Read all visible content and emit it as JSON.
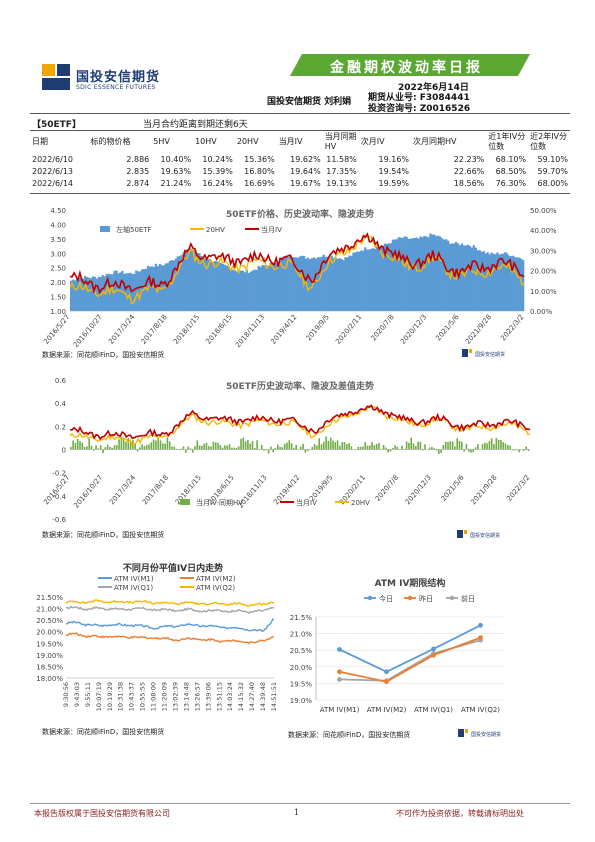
{
  "header": {
    "company_cn": "国投安信期货",
    "company_en": "SDIC ESSENCE FUTURES",
    "report_title": "金融期权波动率日报",
    "date": "2022年6月14日",
    "authors": "国投安信期货 刘利娟",
    "license1": "期货从业号: F3084441",
    "license2": "投资咨询号: Z0016526"
  },
  "summary": {
    "tag": "【50ETF】",
    "remaining": "当月合约距离到期还剩6天",
    "columns": [
      "日期",
      "标的物价格",
      "5HV",
      "10HV",
      "20HV",
      "当月IV",
      "当月同期HV",
      "次月IV",
      "次月同期HV",
      "近1年IV分位数",
      "近2年IV分位数"
    ],
    "rows": [
      [
        "2022/6/10",
        "2.886",
        "10.40%",
        "10.24%",
        "15.36%",
        "19.62%",
        "11.58%",
        "19.16%",
        "22.23%",
        "68.10%",
        "59.10%"
      ],
      [
        "2022/6/13",
        "2.835",
        "19.63%",
        "15.39%",
        "16.80%",
        "19.64%",
        "17.35%",
        "19.54%",
        "22.66%",
        "68.50%",
        "59.70%"
      ],
      [
        "2022/6/14",
        "2.874",
        "21.24%",
        "16.24%",
        "16.69%",
        "19.67%",
        "19.13%",
        "19.59%",
        "18.56%",
        "76.30%",
        "68.00%"
      ]
    ]
  },
  "chart1": {
    "title": "50ETF价格、历史波动率、隐波走势",
    "legend": [
      "左轴50ETF",
      "20HV",
      "当月IV"
    ],
    "yleft_ticks": [
      "4.50",
      "4.00",
      "3.50",
      "3.00",
      "2.50",
      "2.00",
      "1.50",
      "1.00"
    ],
    "yright_ticks": [
      "50.00%",
      "40.00%",
      "30.00%",
      "20.00%",
      "10.00%",
      "0.00%"
    ],
    "xticks": [
      "2016/5/27",
      "2016/10/27",
      "2017/3/24",
      "2017/8/18",
      "2018/1/15",
      "2018/6/15",
      "2018/11/13",
      "2019/4/12",
      "2019/9/5",
      "2020/2/11",
      "2020/7/8",
      "2020/12/3",
      "2021/5/6",
      "2021/9/28",
      "2022/3/2"
    ],
    "source": "数据来源：同花顺iFinD，国投安信期货"
  },
  "chart2": {
    "title": "50ETF历史波动率、隐波及差值走势",
    "legend": [
      "当月IV-同期HV",
      "当月IV",
      "20HV"
    ],
    "yticks": [
      "0.6",
      "0.4",
      "0.2",
      "0",
      "-0.2",
      "-0.4",
      "-0.6"
    ],
    "xticks": [
      "2016/5/27",
      "2016/10/27",
      "2017/3/24",
      "2017/8/18",
      "2018/1/15",
      "2018/6/15",
      "2018/11/13",
      "2019/4/12",
      "2019/9/5",
      "2020/2/11",
      "2020/7/8",
      "2020/12/3",
      "2021/5/6",
      "2021/9/28",
      "2022/3/2"
    ],
    "source": "数据来源：同花顺iFinD，国投安信期货"
  },
  "chart3": {
    "title": "不同月份平值IV日内走势",
    "legend": [
      "ATM IV(M1)",
      "ATM IV(M2)",
      "ATM IV(Q1)",
      "ATM IV(Q2)"
    ],
    "yticks": [
      "21.50%",
      "21.00%",
      "20.50%",
      "20.00%",
      "19.50%",
      "19.00%",
      "18.50%",
      "18.00%"
    ],
    "xticks": [
      "9:30:56",
      "9:43:03",
      "9:55:11",
      "10:07:19",
      "10:19:29",
      "10:31:38",
      "10:43:37",
      "10:55:55",
      "11:08:00",
      "11:20:09",
      "13:02:39",
      "13:14:48",
      "13:26:57",
      "13:39:06",
      "13:51:15",
      "14:03:24",
      "14:15:32",
      "14:27:40",
      "14:39:48",
      "14:51:51"
    ],
    "source": "数据来源：同花顺iFinD，国投安信期货"
  },
  "chart4": {
    "title": "ATM IV期限结构",
    "legend": [
      "今日",
      "昨日",
      "前日"
    ],
    "yticks": [
      "21.5%",
      "21.0%",
      "20.5%",
      "20.0%",
      "19.5%",
      "19.0%"
    ],
    "categories": [
      "ATM IV(M1)",
      "ATM IV(M2)",
      "ATM IV(Q1)",
      "ATM IV(Q2)"
    ],
    "source": "数据来源：同花顺iFinD，国投安信期货"
  },
  "chart_data": [
    {
      "type": "area",
      "title": "50ETF价格、历史波动率、隐波走势",
      "x": [
        "2016/5/27",
        "2016/10/27",
        "2017/3/24",
        "2017/8/18",
        "2018/1/15",
        "2018/6/15",
        "2018/11/13",
        "2019/4/12",
        "2019/9/5",
        "2020/2/11",
        "2020/7/8",
        "2020/12/3",
        "2021/5/6",
        "2021/9/28",
        "2022/3/2",
        "2022/6/14"
      ],
      "ylim_left": [
        1.0,
        4.5
      ],
      "ylim_right": [
        0,
        0.5
      ],
      "series": [
        {
          "name": "左轴50ETF",
          "axis": "left",
          "values": [
            2.05,
            2.25,
            2.35,
            2.6,
            3.15,
            2.55,
            2.35,
            2.85,
            2.9,
            2.85,
            3.2,
            3.5,
            3.6,
            3.3,
            3.0,
            2.87
          ]
        },
        {
          "name": "20HV",
          "axis": "right",
          "values": [
            0.11,
            0.1,
            0.08,
            0.1,
            0.28,
            0.22,
            0.23,
            0.24,
            0.13,
            0.3,
            0.35,
            0.22,
            0.25,
            0.17,
            0.22,
            0.167
          ]
        },
        {
          "name": "当月IV",
          "axis": "right",
          "values": [
            0.16,
            0.13,
            0.12,
            0.13,
            0.3,
            0.25,
            0.26,
            0.26,
            0.17,
            0.33,
            0.36,
            0.24,
            0.26,
            0.19,
            0.24,
            0.197
          ]
        }
      ]
    },
    {
      "type": "line",
      "title": "50ETF历史波动率、隐波及差值走势",
      "x": [
        "2016/5/27",
        "2016/10/27",
        "2017/3/24",
        "2017/8/18",
        "2018/1/15",
        "2018/6/15",
        "2018/11/13",
        "2019/4/12",
        "2019/9/5",
        "2020/2/11",
        "2020/7/8",
        "2020/12/3",
        "2021/5/6",
        "2021/9/28",
        "2022/3/2",
        "2022/6/14"
      ],
      "ylim": [
        -0.6,
        0.6
      ],
      "series": [
        {
          "name": "当月IV-同期HV",
          "values": [
            0.03,
            0.04,
            0.04,
            0.05,
            0.02,
            0.05,
            0.04,
            0.03,
            0.05,
            0.06,
            0.02,
            0.03,
            0.02,
            0.03,
            0.04,
            0.005
          ]
        },
        {
          "name": "当月IV",
          "values": [
            0.16,
            0.13,
            0.12,
            0.13,
            0.3,
            0.25,
            0.26,
            0.26,
            0.17,
            0.33,
            0.36,
            0.24,
            0.26,
            0.19,
            0.24,
            0.197
          ]
        },
        {
          "name": "20HV",
          "values": [
            0.11,
            0.1,
            0.08,
            0.1,
            0.28,
            0.22,
            0.23,
            0.24,
            0.13,
            0.3,
            0.35,
            0.22,
            0.25,
            0.17,
            0.22,
            0.167
          ]
        }
      ]
    },
    {
      "type": "line",
      "title": "不同月份平值IV日内走势",
      "ylim": [
        0.18,
        0.215
      ],
      "series": [
        {
          "name": "ATM IV(M1)",
          "values": [
            0.2035,
            0.204,
            0.203,
            0.2025,
            0.2032,
            0.2028,
            0.203,
            0.2022,
            0.2018,
            0.202,
            0.2025,
            0.203,
            0.2028,
            0.2024,
            0.202,
            0.2018,
            0.2015,
            0.201,
            0.2,
            0.206
          ]
        },
        {
          "name": "ATM IV(M2)",
          "values": [
            0.1985,
            0.199,
            0.1982,
            0.1978,
            0.198,
            0.1975,
            0.1978,
            0.1972,
            0.1975,
            0.197,
            0.1965,
            0.197,
            0.1968,
            0.1965,
            0.196,
            0.1962,
            0.1958,
            0.1955,
            0.1958,
            0.1985
          ]
        },
        {
          "name": "ATM IV(Q1)",
          "values": [
            0.21,
            0.2105,
            0.2098,
            0.2102,
            0.21,
            0.2095,
            0.21,
            0.2098,
            0.2096,
            0.2094,
            0.2092,
            0.2095,
            0.2093,
            0.209,
            0.2092,
            0.2088,
            0.209,
            0.2086,
            0.2088,
            0.211
          ]
        },
        {
          "name": "ATM IV(Q2)",
          "values": [
            0.2125,
            0.213,
            0.2128,
            0.2132,
            0.213,
            0.2128,
            0.213,
            0.2128,
            0.2126,
            0.2124,
            0.2122,
            0.2125,
            0.2123,
            0.212,
            0.2122,
            0.2118,
            0.212,
            0.2116,
            0.2118,
            0.213
          ]
        }
      ]
    },
    {
      "type": "line",
      "title": "ATM IV期限结构",
      "categories": [
        "ATM IV(M1)",
        "ATM IV(M2)",
        "ATM IV(Q1)",
        "ATM IV(Q2)"
      ],
      "ylim": [
        0.19,
        0.215
      ],
      "series": [
        {
          "name": "今日",
          "values": [
            0.2052,
            0.1985,
            0.2054,
            0.2125
          ]
        },
        {
          "name": "昨日",
          "values": [
            0.1985,
            0.1955,
            0.2035,
            0.2088
          ]
        },
        {
          "name": "前日",
          "values": [
            0.1962,
            0.1958,
            0.204,
            0.208
          ]
        }
      ]
    }
  ],
  "footer": {
    "left": "本报告版权属于国投安信期货有限公司",
    "page": "1",
    "right": "不可作为投资依据，转载请标明出处"
  },
  "colors": {
    "brand_blue": "#1f3d73",
    "banner_green": "#5aa832",
    "etf_blue": "#5b9bd5",
    "hv_yellow": "#f5b800",
    "iv_red": "#c00000",
    "diff_green": "#70ad47",
    "gray": "#a5a5a5",
    "orange": "#ed7d31"
  }
}
